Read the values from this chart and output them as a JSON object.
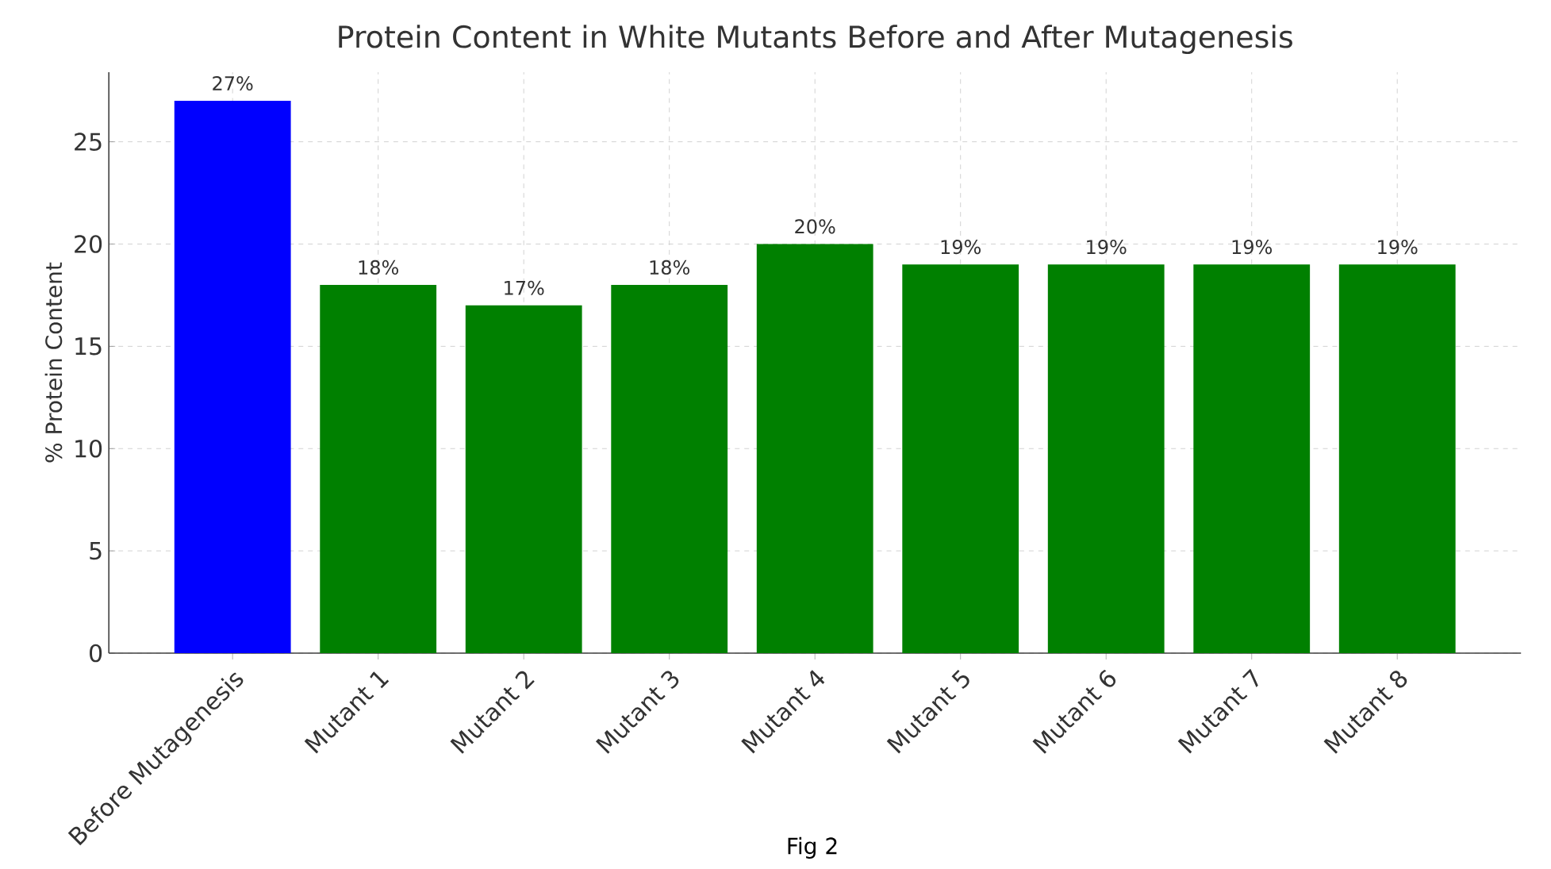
{
  "chart_data": {
    "type": "bar",
    "title": "Protein Content in White Mutants Before and After Mutagenesis",
    "ylabel": "% Protein Content",
    "categories": [
      "Before Mutagenesis",
      "Mutant 1",
      "Mutant 2",
      "Mutant 3",
      "Mutant 4",
      "Mutant 5",
      "Mutant 6",
      "Mutant 7",
      "Mutant 8"
    ],
    "values": [
      27,
      18,
      17,
      18,
      20,
      19,
      19,
      19,
      19
    ],
    "value_labels": [
      "27%",
      "18%",
      "17%",
      "18%",
      "20%",
      "19%",
      "19%",
      "19%",
      "19%"
    ],
    "colors": [
      "#0000ff",
      "#008000",
      "#008000",
      "#008000",
      "#008000",
      "#008000",
      "#008000",
      "#008000",
      "#008000"
    ],
    "ylim": [
      0,
      28.4
    ],
    "yticks": [
      0,
      5,
      10,
      15,
      20,
      25
    ],
    "grid": true,
    "annotations": [
      "Fig 2"
    ]
  }
}
